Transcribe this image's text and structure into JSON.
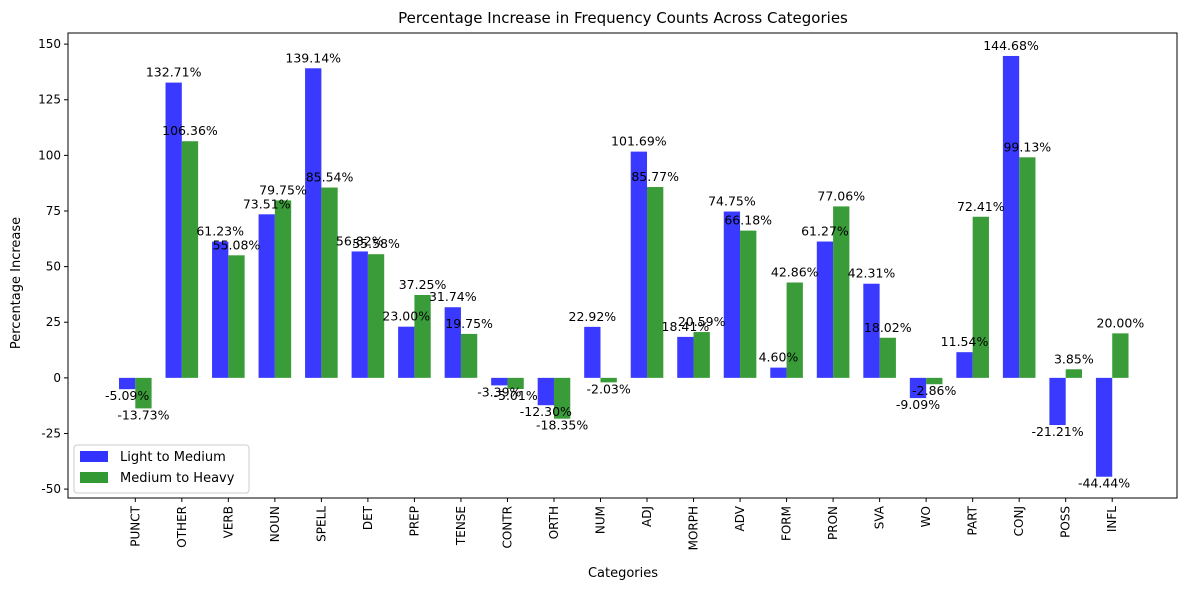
{
  "chart_data": {
    "type": "bar",
    "title": "Percentage Increase in Frequency Counts Across Categories",
    "xlabel": "Categories",
    "ylabel": "Percentage Increase",
    "ylim": [
      -54,
      155
    ],
    "yticks": [
      -50,
      -25,
      0,
      25,
      50,
      75,
      100,
      125,
      150
    ],
    "legend_position": "lower-left",
    "categories": [
      "PUNCT",
      "OTHER",
      "VERB",
      "NOUN",
      "SPELL",
      "DET",
      "PREP",
      "TENSE",
      "CONTR",
      "ORTH",
      "NUM",
      "ADJ",
      "MORPH",
      "ADV",
      "FORM",
      "PRON",
      "SVA",
      "WO",
      "PART",
      "CONJ",
      "POSS",
      "INFL"
    ],
    "series": [
      {
        "name": "Light to Medium",
        "color": "#3333ff",
        "values": [
          -5.09,
          132.71,
          61.23,
          73.51,
          139.14,
          56.82,
          23.0,
          31.74,
          -3.39,
          -12.3,
          22.92,
          101.69,
          18.41,
          74.75,
          4.6,
          61.27,
          42.31,
          -9.09,
          11.54,
          144.68,
          -21.21,
          -44.44
        ],
        "labels": [
          "-5.09%",
          "132.71%",
          "61.23%",
          "73.51%",
          "139.14%",
          "56.82%",
          "23.00%",
          "31.74%",
          "-3.39%",
          "-12.30%",
          "22.92%",
          "101.69%",
          "18.41%",
          "74.75%",
          "4.60%",
          "61.27%",
          "42.31%",
          "-9.09%",
          "11.54%",
          "144.68%",
          "-21.21%",
          "-44.44%"
        ]
      },
      {
        "name": "Medium to Heavy",
        "color": "#339933",
        "values": [
          -13.73,
          106.36,
          55.08,
          79.75,
          85.54,
          55.58,
          37.25,
          19.75,
          -5.01,
          -18.35,
          -2.03,
          85.77,
          20.59,
          66.18,
          42.86,
          77.06,
          18.02,
          -2.86,
          72.41,
          99.13,
          3.85,
          20.0
        ],
        "labels": [
          "-13.73%",
          "106.36%",
          "55.08%",
          "79.75%",
          "85.54%",
          "55.58%",
          "37.25%",
          "19.75%",
          "-5.01%",
          "-18.35%",
          "-2.03%",
          "85.77%",
          "20.59%",
          "66.18%",
          "42.86%",
          "77.06%",
          "18.02%",
          "-2.86%",
          "72.41%",
          "99.13%",
          "3.85%",
          "20.00%"
        ]
      }
    ]
  }
}
